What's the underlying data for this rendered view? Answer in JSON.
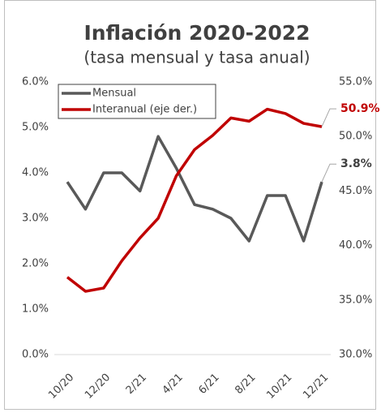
{
  "chart_data": {
    "type": "line",
    "title": "Inflación 2020-2022",
    "subtitle": "(tasa mensual y tasa anual)",
    "categories": [
      "10/20",
      null,
      "12/20",
      null,
      "2/21",
      null,
      "4/21",
      null,
      "6/21",
      null,
      "8/21",
      null,
      "10/21",
      null,
      "12/21"
    ],
    "series": [
      {
        "name": "Mensual",
        "color": "#595959",
        "values": [
          3.8,
          3.2,
          4.0,
          4.0,
          3.6,
          4.8,
          4.1,
          3.3,
          3.2,
          3.0,
          2.5,
          3.5,
          3.5,
          2.5,
          3.8
        ],
        "value_labels": [
          null,
          null,
          null,
          null,
          null,
          null,
          null,
          null,
          null,
          null,
          null,
          null,
          null,
          null,
          "3.8%"
        ]
      },
      {
        "name": "Interanual (eje der.)",
        "color": "#c00000",
        "axis": "y2",
        "values": [
          37.1,
          35.8,
          36.1,
          38.6,
          40.7,
          42.5,
          46.4,
          48.8,
          50.1,
          51.7,
          51.4,
          52.5,
          52.1,
          51.2,
          50.9
        ],
        "value_labels": [
          null,
          null,
          null,
          null,
          null,
          null,
          null,
          null,
          null,
          null,
          null,
          null,
          null,
          null,
          "50.9%"
        ]
      }
    ],
    "ylim": [
      0,
      6
    ],
    "yticks": [
      {
        "value": 0,
        "label": "0.0%"
      },
      {
        "value": 1,
        "label": "1.0%"
      },
      {
        "value": 2,
        "label": "2.0%"
      },
      {
        "value": 3,
        "label": "3.0%"
      },
      {
        "value": 4,
        "label": "4.0%"
      },
      {
        "value": 5,
        "label": "5.0%"
      },
      {
        "value": 6,
        "label": "6.0%"
      }
    ],
    "y2lim": [
      30,
      55
    ],
    "y2ticks": [
      {
        "value": 30,
        "label": "30.0%"
      },
      {
        "value": 35,
        "label": "35.0%"
      },
      {
        "value": 40,
        "label": "40.0%"
      },
      {
        "value": 45,
        "label": "45.0%"
      },
      {
        "value": 50,
        "label": "50.0%"
      },
      {
        "value": 55,
        "label": "55.0%"
      }
    ],
    "grid": false,
    "legend": "upper-left"
  }
}
